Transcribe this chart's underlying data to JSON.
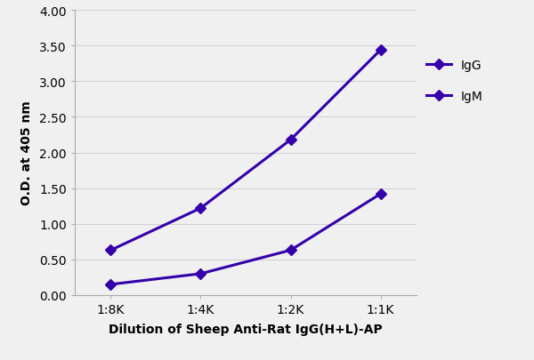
{
  "x_labels": [
    "1:8K",
    "1:4K",
    "1:2K",
    "1:1K"
  ],
  "x_values": [
    1,
    2,
    3,
    4
  ],
  "IgG_values": [
    0.63,
    1.22,
    2.18,
    3.44
  ],
  "IgM_values": [
    0.15,
    0.3,
    0.63,
    1.42
  ],
  "line_color": "#3300aa",
  "ylabel": "O.D. at 405 nm",
  "xlabel": "Dilution of Sheep Anti-Rat IgG(H+L)-AP",
  "ylim": [
    0.0,
    4.0
  ],
  "yticks": [
    0.0,
    0.5,
    1.0,
    1.5,
    2.0,
    2.5,
    3.0,
    3.5,
    4.0
  ],
  "legend_IgG": "IgG",
  "legend_IgM": "IgM",
  "marker": "D",
  "linewidth": 2.2,
  "markersize": 6,
  "figure_background": "#f0f0f0",
  "plot_background": "#f0f0f0",
  "grid_color": "#d0d0d0",
  "spine_color": "#aaaaaa",
  "tick_label_fontsize": 10,
  "axis_label_fontsize": 10,
  "legend_fontsize": 10
}
